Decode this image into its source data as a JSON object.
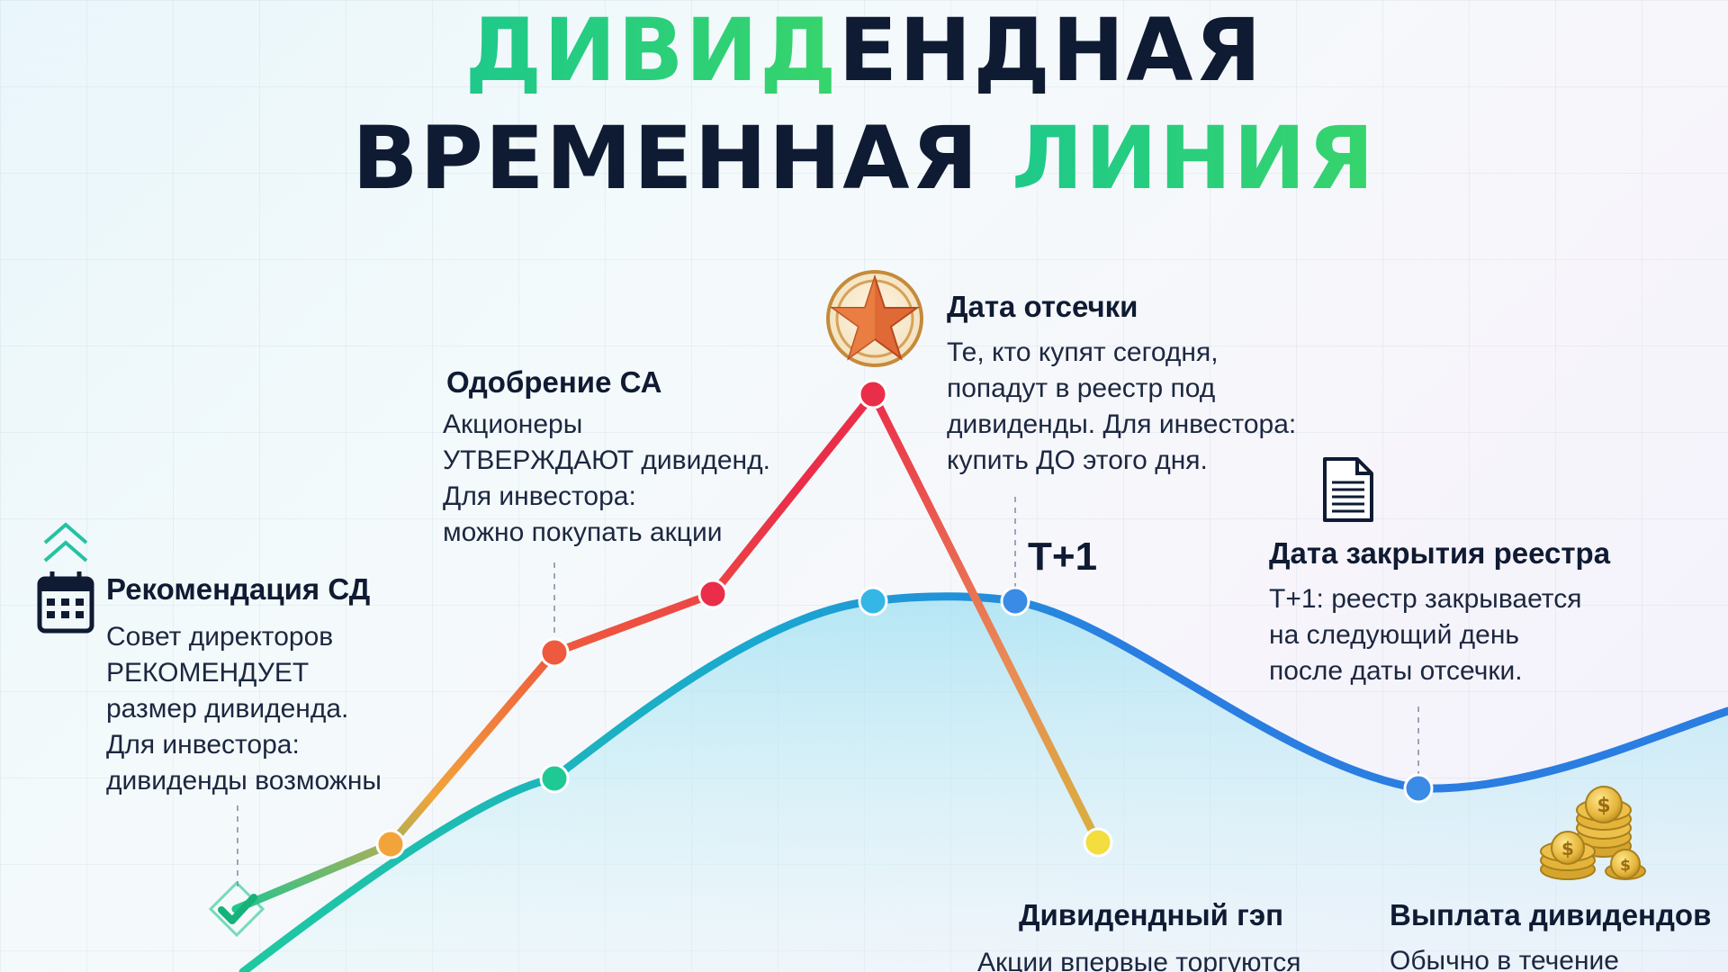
{
  "title": {
    "line1_accent": "ДИВИД",
    "line1_rest": "ЕНДНАЯ",
    "line2_main": "ВРЕМЕННАЯ ",
    "line2_accent": "ЛИНИЯ"
  },
  "colors": {
    "accent_green": "#2ed07a",
    "navy": "#0f1b33",
    "price_line_red": "#ee3c4b",
    "price_line_orange": "#f08a3a",
    "gap_line_gold": "#d9c23a",
    "baseline_blue": "#2a7de1"
  },
  "events": [
    {
      "id": "recommendation",
      "title": "Рекомендация СД",
      "body": "Совет директоров\nРЕКОМЕНДУЕТ\nразмер дивиденда.\nДля инвестора:\nдивиденды возможны",
      "icon": "calendar-icon"
    },
    {
      "id": "approval",
      "title": "Одобрение СА",
      "body": "Акционеры\nУТВЕРЖДАЮТ дивиденд.\nДля инвестора:\nможно покупать акции",
      "icon": ""
    },
    {
      "id": "cutoff",
      "title": "Дата отсечки",
      "body": "Те, кто купят сегодня,\nпопадут в реестр под\nдивиденды. Для инвестора:\nкупить ДО этого дня.",
      "icon": "star-medal-icon"
    },
    {
      "id": "t_plus_1",
      "title": "T+1",
      "body": "",
      "icon": ""
    },
    {
      "id": "registry_close",
      "title": "Дата закрытия реестра",
      "body": "T+1: реестр закрывается\nна следующий день\nпосле даты отсечки.",
      "icon": "document-icon"
    },
    {
      "id": "gap",
      "title": "Дивидендный гэп",
      "body": "Акции впервые торгуются",
      "icon": ""
    },
    {
      "id": "payout",
      "title": "Выплата дивидендов",
      "body": "Обычно в течение",
      "icon": "coins-icon"
    }
  ]
}
